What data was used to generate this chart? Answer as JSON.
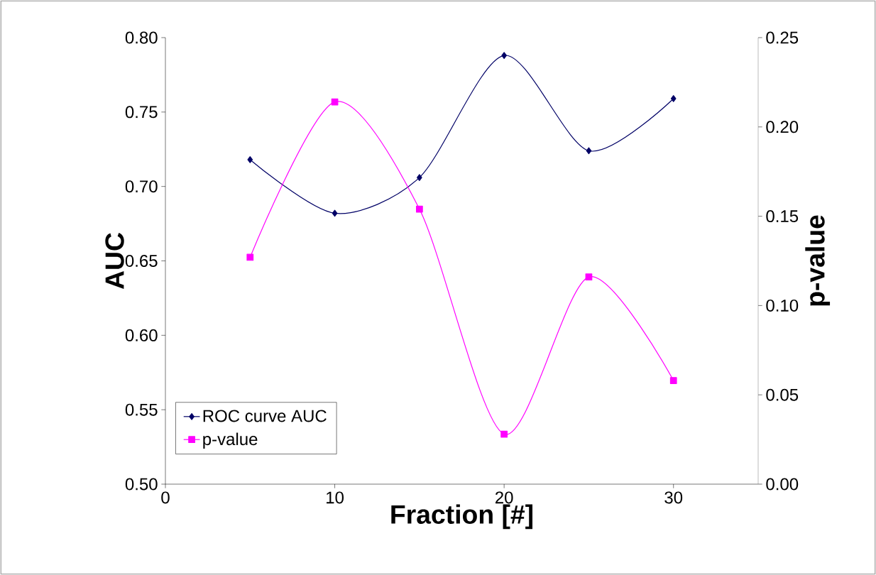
{
  "chart_data": {
    "type": "line",
    "xlabel": "Fraction [#]",
    "ylabel": "AUC",
    "y2label": "p-value",
    "x": [
      5,
      10,
      15,
      20,
      25,
      30
    ],
    "series": [
      {
        "name": "ROC curve AUC",
        "color": "#000066",
        "marker": "diamond",
        "values": [
          0.718,
          0.682,
          0.706,
          0.788,
          0.724,
          0.759
        ]
      },
      {
        "name": "p-value",
        "color": "#ff00ff",
        "marker": "square",
        "axis": "y2",
        "values": [
          0.127,
          0.214,
          0.154,
          0.028,
          0.116,
          0.058
        ]
      }
    ],
    "xlim": [
      0,
      35
    ],
    "xticks": [
      0,
      10,
      20,
      30
    ],
    "ylim": [
      0.5,
      0.8
    ],
    "yticks": [
      {
        "value": 0.5,
        "label": "0.50"
      },
      {
        "value": 0.55,
        "label": "0.55"
      },
      {
        "value": 0.6,
        "label": "0.60"
      },
      {
        "value": 0.65,
        "label": "0.65"
      },
      {
        "value": 0.7,
        "label": "0.70"
      },
      {
        "value": 0.75,
        "label": "0.75"
      },
      {
        "value": 0.8,
        "label": "0.80"
      }
    ],
    "y2lim": [
      0,
      0.25
    ],
    "y2ticks": [
      {
        "value": 0,
        "label": "0.00"
      },
      {
        "value": 0.05,
        "label": "0.05"
      },
      {
        "value": 0.1,
        "label": "0.10"
      },
      {
        "value": 0.15,
        "label": "0.15"
      },
      {
        "value": 0.2,
        "label": "0.20"
      },
      {
        "value": 0.25,
        "label": "0.25"
      }
    ],
    "legend": "bottom left",
    "grid": false,
    "line_style": "solid"
  }
}
